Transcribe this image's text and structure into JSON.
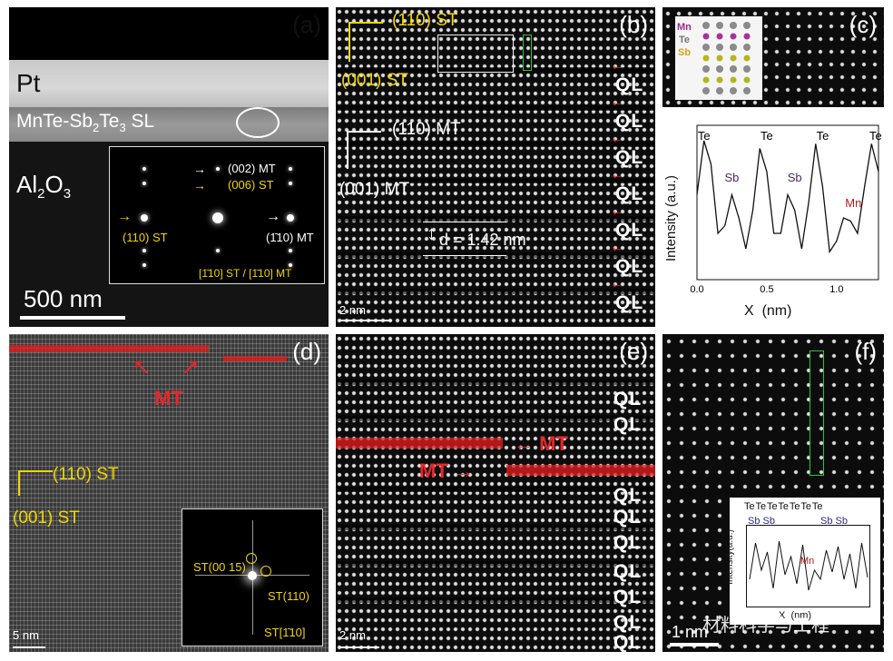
{
  "panels": {
    "a": {
      "label": "(a)",
      "pt": "Pt",
      "sl_prefix": "MnTe-Sb",
      "sl_sub1": "2",
      "sl_mid": "Te",
      "sl_sub2": "3",
      "sl_suffix": " SL",
      "al": "Al",
      "al_sub1": "2",
      "al_mid": "O",
      "al_sub2": "3",
      "scale": "500 nm",
      "inset": {
        "mt002": "(002) MT",
        "st006": "(006) ST",
        "st110": "(110) ST",
        "mt1-10": "(1̄10) MT",
        "zone": "[1̄10] ST / [1̄10] MT"
      }
    },
    "b": {
      "label": "(b)",
      "st110": "(110) ST",
      "st001": "(001) ST",
      "mt110": "(110) MT",
      "mt001": "(001) MT",
      "d": "d = 1.42 nm",
      "ql": [
        "QL",
        "QL",
        "QL",
        "QL",
        "QL",
        "QL",
        "QL"
      ],
      "scale": "2 nm"
    },
    "c": {
      "label": "(c)",
      "legend": [
        "Mn",
        "Te",
        "Sb"
      ],
      "peaks_top": [
        "Te",
        "Te",
        "Te",
        "Te"
      ],
      "peaks_mid": [
        "Sb",
        "Sb"
      ],
      "mn": "Mn",
      "ylabel": "Intensity (a.u.)",
      "xlabel": "X  (nm)",
      "xticks": [
        "0.0",
        "0.5",
        "1.0"
      ]
    },
    "d": {
      "label": "(d)",
      "mt": "MT",
      "st110": "(110) ST",
      "st001": "(001) ST",
      "fft": {
        "a": "ST(00 15)",
        "b": "ST(110)",
        "c": "ST[1̄10]"
      },
      "scale": "5 nm"
    },
    "e": {
      "label": "(e)",
      "ql_top": [
        "QL",
        "QL"
      ],
      "mt1": "MT",
      "mt2": "MT",
      "ql_bot": [
        "QL",
        "QL",
        "QL",
        "QL",
        "QL",
        "QL",
        "QL"
      ],
      "scale": "2 nm"
    },
    "f": {
      "label": "(f)",
      "scale": "1 nm",
      "inset": {
        "te": "Te Te Te Te Te Te Te",
        "sb_left": "Sb Sb",
        "sb_right": "Sb Sb",
        "mn": "Mn",
        "ylabel": "Intensity(a.u.)",
        "xlabel": "X  (nm)"
      },
      "watermark": "材料科学与工程"
    }
  },
  "chart_data": {
    "type": "line",
    "title": "",
    "xlabel": "X  (nm)",
    "ylabel": "Intensity (a.u.)",
    "xlim": [
      0,
      1.3
    ],
    "x": [
      0.0,
      0.05,
      0.1,
      0.15,
      0.2,
      0.25,
      0.3,
      0.35,
      0.4,
      0.45,
      0.5,
      0.55,
      0.6,
      0.65,
      0.7,
      0.75,
      0.8,
      0.85,
      0.9,
      0.95,
      1.0,
      1.05,
      1.1,
      1.15,
      1.2,
      1.25,
      1.3
    ],
    "series": [
      {
        "values": [
          0.55,
          0.9,
          0.75,
          0.3,
          0.35,
          0.55,
          0.4,
          0.2,
          0.45,
          0.85,
          0.7,
          0.3,
          0.3,
          0.55,
          0.45,
          0.2,
          0.5,
          0.88,
          0.6,
          0.18,
          0.25,
          0.4,
          0.38,
          0.3,
          0.6,
          0.88,
          0.7
        ]
      }
    ]
  }
}
